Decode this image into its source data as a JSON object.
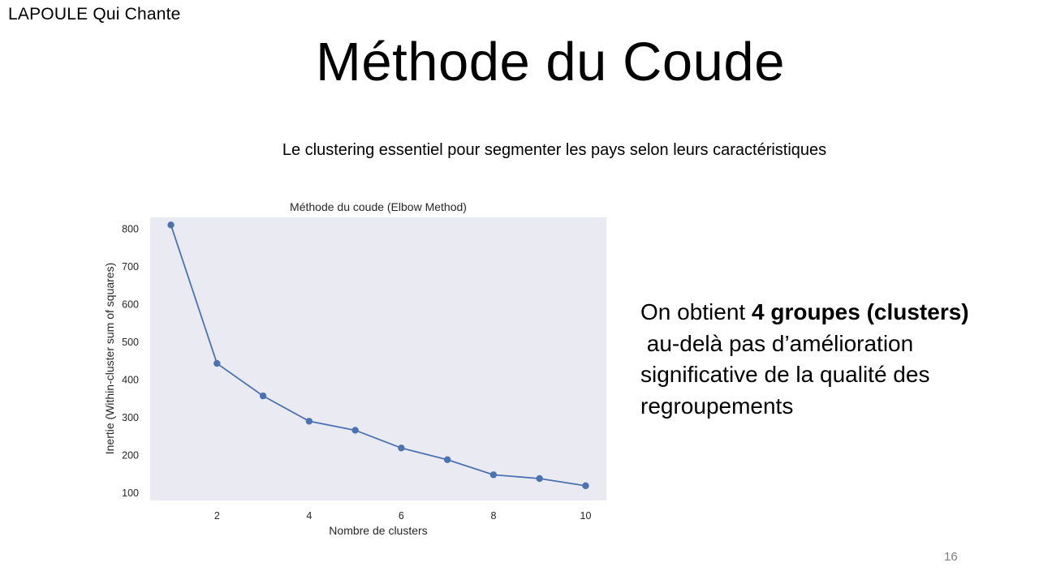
{
  "slide": {
    "brand": "LAPOULE Qui Chante",
    "title": "Méthode du Coude",
    "subtitle": "Le clustering essentiel pour segmenter les pays selon leurs caractéristiques",
    "page_number": "16"
  },
  "description": {
    "line1_prefix": "On obtient ",
    "line1_strong": "4 groupes (clusters)",
    "line2": " au-delà pas d’amélioration",
    "line3": "significative de la qualité des",
    "line4": "regroupements"
  },
  "chart_data": {
    "type": "line",
    "title": "Méthode du coude (Elbow Method)",
    "xlabel": "Nombre de clusters",
    "ylabel": "Inertie (Within-cluster sum of squares)",
    "x": [
      1,
      2,
      3,
      4,
      5,
      6,
      7,
      8,
      9,
      10
    ],
    "series": [
      {
        "values": [
          810,
          443,
          357,
          290,
          266,
          219,
          188,
          148,
          138,
          119
        ]
      }
    ],
    "xlim": [
      0.55,
      10.45
    ],
    "ylim": [
      80,
      830
    ],
    "xticks": [
      "2",
      "4",
      "6",
      "8",
      "10"
    ],
    "yticks": [
      "100",
      "200",
      "300",
      "400",
      "500",
      "600",
      "700",
      "800"
    ],
    "markers": "circle",
    "grid": false,
    "background_color": "#eaeaf2",
    "line_color": "#4c72b0"
  }
}
